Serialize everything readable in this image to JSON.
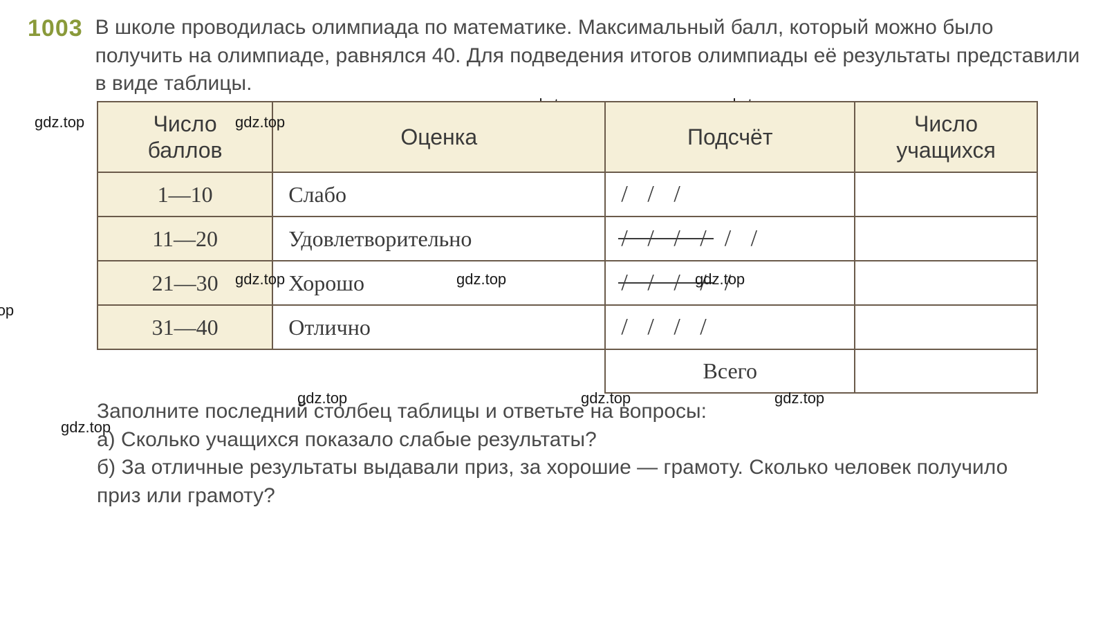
{
  "problem": {
    "number": "1003",
    "text": "В школе проводилась олимпиада по математике. Максимальный балл, который можно было получить на олимпиаде, равнялся 40. Для подведения итогов олимпиады её результаты представили в виде таблицы."
  },
  "watermark": "gdz.top",
  "table": {
    "headers": {
      "score": "Число баллов",
      "grade": "Оценка",
      "tally": "Подсчёт",
      "count": "Число учащихся"
    },
    "rows": [
      {
        "score": "1—10",
        "grade": "Слабо",
        "tally_groups5": 0,
        "tally_extra": 3
      },
      {
        "score": "11—20",
        "grade": "Удовлетворительно",
        "tally_groups5": 1,
        "tally_extra": 2
      },
      {
        "score": "21—30",
        "grade": "Хорошо",
        "tally_groups5": 1,
        "tally_extra": 1
      },
      {
        "score": "31—40",
        "grade": "Отлично",
        "tally_groups5": 0,
        "tally_extra": 4
      }
    ],
    "total_label": "Всего"
  },
  "questions": {
    "intro": "Заполните последний столбец таблицы и ответьте на вопросы:",
    "a_label": "а)",
    "a": "Сколько учащихся показало слабые результаты?",
    "b_label": "б)",
    "b": "За отличные результаты выдавали приз, за хорошие — грамоту. Сколько человек получило приз или грамоту?"
  },
  "style": {
    "accent_color": "#8a9a3a",
    "header_bg": "#f5efd8",
    "border_color": "#6a5a4a",
    "text_color": "#4a4a4a",
    "body_font_size": 30,
    "table_font_size": 32,
    "number_font_size": 34
  }
}
